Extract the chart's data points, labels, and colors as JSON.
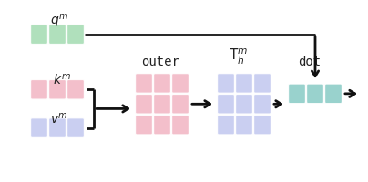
{
  "bg_color": "#ffffff",
  "green_color": "#a8ddb5",
  "pink_color": "#f2b8c6",
  "blue_color": "#c5caf0",
  "teal_color": "#8ecdc8",
  "arrow_color": "#111111",
  "text_color": "#222222",
  "q_label": "$q^m$",
  "k_label": "$k^m$",
  "v_label": "$v^m$",
  "outer_label": "outer",
  "T_label": "$\\mathsf{T}^m_h$",
  "dot_label": "dot",
  "label_fontsize": 10,
  "mono_fontsize": 10
}
